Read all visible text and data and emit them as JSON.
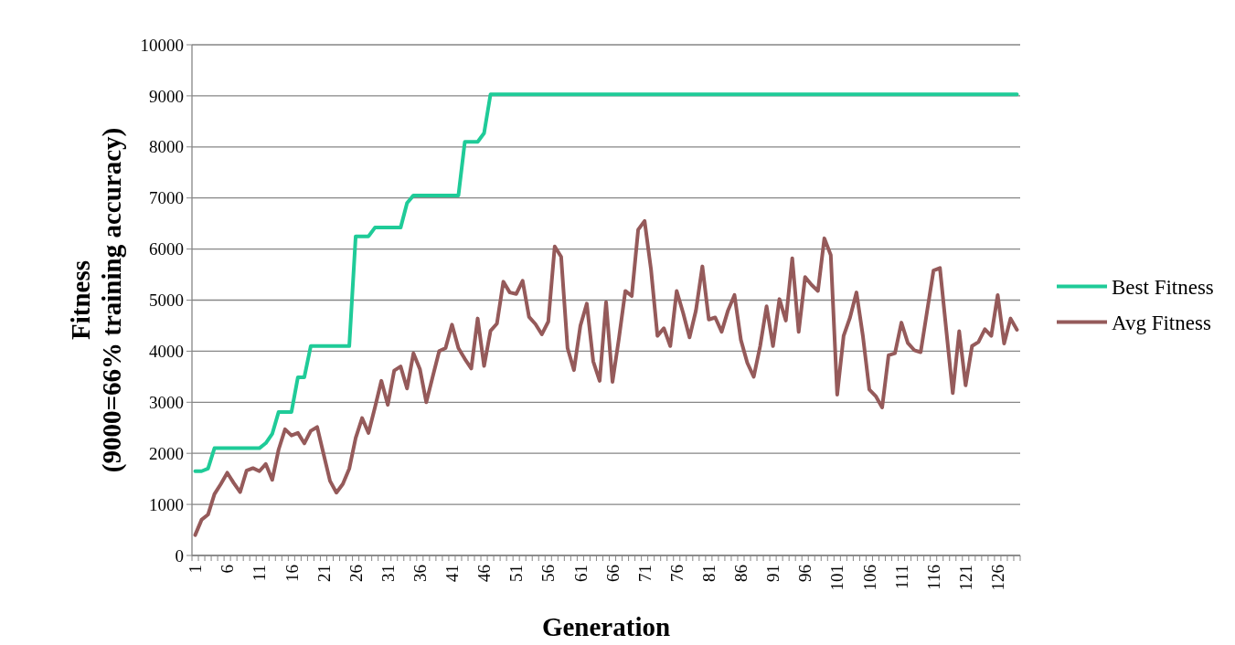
{
  "chart_data": {
    "type": "line",
    "xlabel": "Generation",
    "ylabel": "Fitness\n(9000=66% training accuracy)",
    "categories": [
      "1",
      null,
      null,
      null,
      null,
      "6",
      null,
      null,
      null,
      null,
      "11",
      null,
      null,
      null,
      null,
      "16",
      null,
      null,
      null,
      null,
      "21",
      null,
      null,
      null,
      null,
      "26",
      null,
      null,
      null,
      null,
      "31",
      null,
      null,
      null,
      null,
      "36",
      null,
      null,
      null,
      null,
      "41",
      null,
      null,
      null,
      null,
      "46",
      null,
      null,
      null,
      null,
      "51",
      null,
      null,
      null,
      null,
      "56",
      null,
      null,
      null,
      null,
      "61",
      null,
      null,
      null,
      null,
      "66",
      null,
      null,
      null,
      null,
      "71",
      null,
      null,
      null,
      null,
      "76",
      null,
      null,
      null,
      null,
      "81",
      null,
      null,
      null,
      null,
      "86",
      null,
      null,
      null,
      null,
      "91",
      null,
      null,
      null,
      null,
      "96",
      null,
      null,
      null,
      null,
      "101",
      null,
      null,
      null,
      null,
      "106",
      null,
      null,
      null,
      null,
      "111",
      null,
      null,
      null,
      null,
      "116",
      null,
      null,
      null,
      null,
      "121",
      null,
      null,
      null,
      null,
      "126",
      null,
      null,
      null
    ],
    "series": [
      {
        "name": "Best Fitness",
        "color": "#1fcb98",
        "values": [
          1650,
          1650,
          1700,
          2100,
          2100,
          2100,
          2100,
          2100,
          2100,
          2100,
          2100,
          2200,
          2380,
          2810,
          2810,
          2810,
          3490,
          3490,
          4100,
          4100,
          4100,
          4100,
          4100,
          4100,
          4100,
          6250,
          6250,
          6250,
          6420,
          6420,
          6420,
          6420,
          6420,
          6900,
          7050,
          7050,
          7050,
          7050,
          7050,
          7050,
          7050,
          7050,
          8100,
          8100,
          8100,
          8270,
          9030,
          9030,
          9030,
          9030,
          9030,
          9030,
          9030,
          9030,
          9030,
          9030,
          9030,
          9030,
          9030,
          9030,
          9030,
          9030,
          9030,
          9030,
          9030,
          9030,
          9030,
          9030,
          9030,
          9030,
          9030,
          9030,
          9030,
          9030,
          9030,
          9030,
          9030,
          9030,
          9030,
          9030,
          9030,
          9030,
          9030,
          9030,
          9030,
          9030,
          9030,
          9030,
          9030,
          9030,
          9030,
          9030,
          9030,
          9030,
          9030,
          9030,
          9030,
          9030,
          9030,
          9030,
          9030,
          9030,
          9030,
          9030,
          9030,
          9030,
          9030,
          9030,
          9030,
          9030,
          9030,
          9030,
          9030,
          9030,
          9030,
          9030,
          9030,
          9030,
          9030,
          9030,
          9030,
          9030,
          9030,
          9030,
          9030,
          9030,
          9030,
          9030,
          9030
        ]
      },
      {
        "name": "Avg Fitness",
        "color": "#955a5a",
        "values": [
          400,
          700,
          800,
          1200,
          1400,
          1620,
          1420,
          1240,
          1660,
          1710,
          1650,
          1790,
          1480,
          2075,
          2470,
          2350,
          2400,
          2195,
          2440,
          2515,
          1985,
          1460,
          1230,
          1400,
          1700,
          2300,
          2690,
          2400,
          2900,
          3420,
          2950,
          3620,
          3700,
          3270,
          3960,
          3650,
          3000,
          3500,
          4000,
          4060,
          4520,
          4060,
          3850,
          3660,
          4640,
          3710,
          4400,
          4540,
          5360,
          5150,
          5120,
          5380,
          4670,
          4530,
          4330,
          4580,
          6050,
          5850,
          4060,
          3630,
          4500,
          4930,
          3800,
          3420,
          4960,
          3400,
          4250,
          5180,
          5080,
          6380,
          6550,
          5600,
          4300,
          4450,
          4100,
          5180,
          4750,
          4270,
          4800,
          5660,
          4620,
          4660,
          4380,
          4800,
          5100,
          4220,
          3770,
          3500,
          4100,
          4880,
          4100,
          5020,
          4600,
          5820,
          4380,
          5450,
          5300,
          5180,
          6210,
          5880,
          3150,
          4300,
          4660,
          5150,
          4300,
          3250,
          3120,
          2900,
          3920,
          3960,
          4560,
          4160,
          4020,
          3980,
          4780,
          5580,
          5630,
          4400,
          3180,
          4390,
          3330,
          4100,
          4180,
          4430,
          4300,
          5100,
          4150,
          4640,
          4420
        ]
      }
    ],
    "ylim": [
      0,
      10000
    ],
    "yticks": [
      0,
      1000,
      2000,
      3000,
      4000,
      5000,
      6000,
      7000,
      8000,
      9000,
      10000
    ],
    "grid": "y",
    "legend": "right",
    "marker": "none",
    "line_style": "solid"
  }
}
